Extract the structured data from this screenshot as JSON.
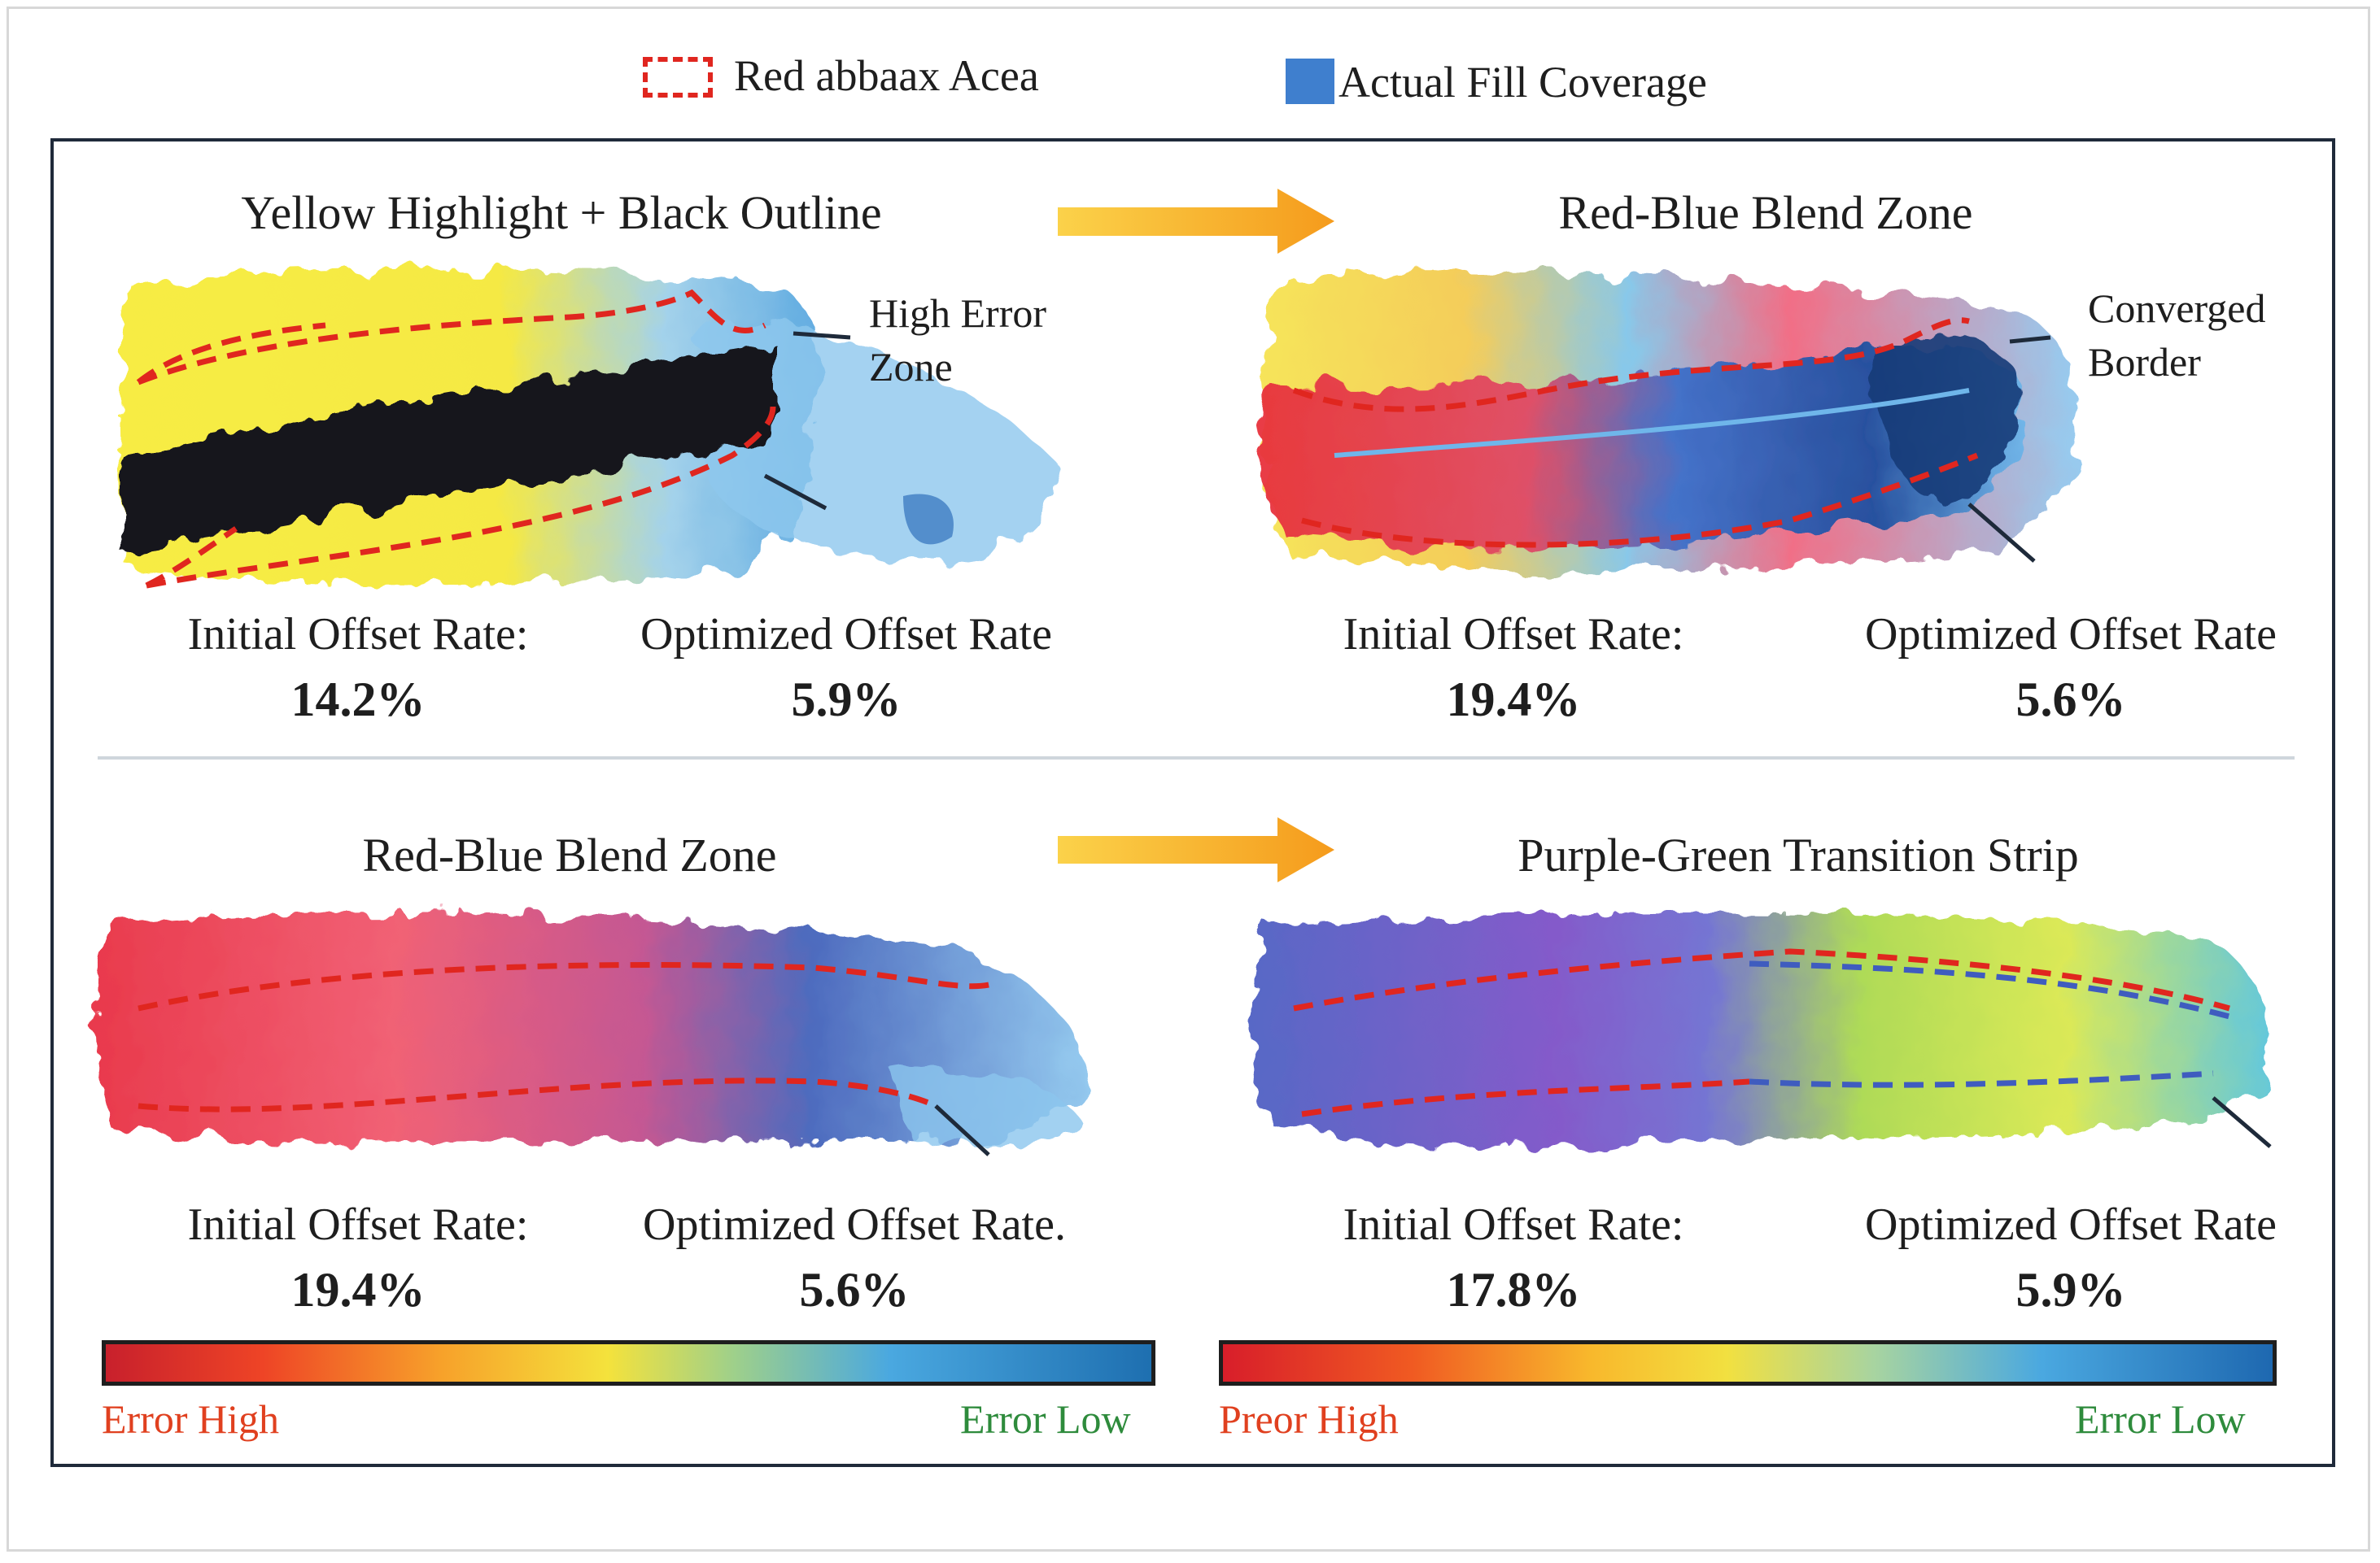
{
  "legend": {
    "target_area_label": "Red abbaax Acea",
    "fill_coverage_label": "Actual Fill Coverage"
  },
  "panels": [
    {
      "title": "Yellow Highlight + Black Outline",
      "annotation_lines": [
        "High Error",
        "Zone"
      ],
      "initial_label": "Initial Offset Rate:",
      "initial_value": "14.2%",
      "optimized_label": "Optimized Offset Rate",
      "optimized_value": "5.9%"
    },
    {
      "title": "Red-Blue Blend Zone",
      "annotation_lines": [
        "Converged",
        "Border"
      ],
      "initial_label": "Initial Offset Rate:",
      "initial_value": "19.4%",
      "optimized_label": "Optimized Offset Rate",
      "optimized_value": "5.6%"
    },
    {
      "title": "Red-Blue Blend Zone",
      "initial_label": "Initial Offset Rate:",
      "initial_value": "19.4%",
      "optimized_label": "Optimized Offset Rate.",
      "optimized_value": "5.6%"
    },
    {
      "title": "Purple-Green Transition Strip",
      "initial_label": "Initial Offset Rate:",
      "initial_value": "17.8%",
      "optimized_label": "Optimized Offset Rate",
      "optimized_value": "5.9%"
    }
  ],
  "colorbars": [
    {
      "low_label": "Error Low",
      "high_label": "Error High"
    },
    {
      "low_label": "Error Low",
      "high_label": "Preor High"
    }
  ],
  "colors": {
    "frame": "#1f2a3a",
    "target_dash": "#e0261f",
    "arrow": "#f5a623",
    "error_high_text": "#e0401f",
    "error_low_text": "#2e8b3c"
  }
}
